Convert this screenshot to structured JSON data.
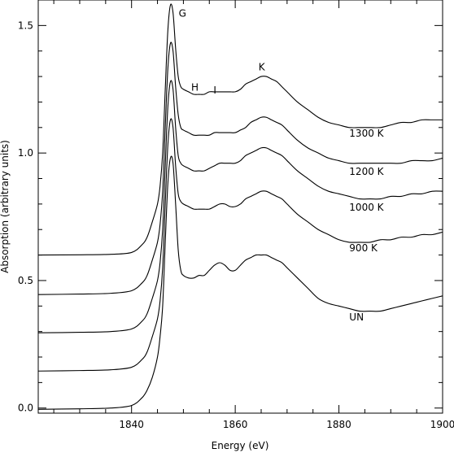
{
  "chart_data": {
    "type": "line",
    "xlabel": "Energy (eV)",
    "ylabel": "Absorption (arbitrary units)",
    "xlim": [
      1822,
      1900
    ],
    "ylim": [
      -0.02,
      1.6
    ],
    "x_ticks": [
      1840,
      1860,
      1880,
      1900
    ],
    "x_tick_labels": [
      "1840",
      "1860",
      "1880",
      "1900"
    ],
    "y_ticks": [
      0.0,
      0.5,
      1.0,
      1.5
    ],
    "y_tick_labels": [
      "0.0",
      "0.5",
      "1.0",
      "1.5"
    ],
    "grid": false,
    "legend": "none",
    "line_color": "#000000",
    "series": [
      {
        "name": "UN",
        "x": [
          1822,
          1830,
          1836,
          1840,
          1842,
          1843,
          1844,
          1845,
          1845.5,
          1846,
          1846.5,
          1847,
          1847.5,
          1848,
          1848.5,
          1849,
          1849.5,
          1850,
          1851,
          1852,
          1853,
          1854,
          1855,
          1856,
          1857,
          1858,
          1859,
          1860,
          1861,
          1862,
          1863,
          1864,
          1865,
          1866,
          1867,
          1868,
          1869,
          1870,
          1872,
          1874,
          1876,
          1878,
          1880,
          1882,
          1884,
          1886,
          1888,
          1890,
          1892,
          1894,
          1896,
          1898,
          1900
        ],
        "y": [
          -0.005,
          -0.003,
          0.0,
          0.01,
          0.04,
          0.07,
          0.12,
          0.2,
          0.28,
          0.4,
          0.65,
          0.88,
          0.98,
          0.96,
          0.8,
          0.62,
          0.54,
          0.52,
          0.51,
          0.51,
          0.52,
          0.52,
          0.54,
          0.56,
          0.57,
          0.56,
          0.54,
          0.54,
          0.56,
          0.58,
          0.59,
          0.6,
          0.6,
          0.6,
          0.59,
          0.58,
          0.57,
          0.55,
          0.51,
          0.47,
          0.43,
          0.41,
          0.4,
          0.39,
          0.38,
          0.38,
          0.38,
          0.39,
          0.4,
          0.41,
          0.42,
          0.43,
          0.44
        ]
      },
      {
        "name": "900 K",
        "x": [
          1822,
          1830,
          1836,
          1840,
          1842,
          1843,
          1844,
          1845,
          1845.5,
          1846,
          1846.5,
          1847,
          1847.5,
          1848,
          1848.5,
          1849,
          1849.5,
          1850,
          1851,
          1852,
          1853,
          1854,
          1855,
          1856,
          1857,
          1858,
          1859,
          1860,
          1861,
          1862,
          1863,
          1864,
          1865,
          1866,
          1867,
          1868,
          1869,
          1870,
          1872,
          1874,
          1876,
          1878,
          1880,
          1882,
          1884,
          1886,
          1888,
          1890,
          1892,
          1894,
          1896,
          1898,
          1900
        ],
        "y": [
          0.145,
          0.147,
          0.15,
          0.16,
          0.19,
          0.22,
          0.28,
          0.35,
          0.42,
          0.55,
          0.8,
          1.03,
          1.13,
          1.1,
          0.95,
          0.84,
          0.81,
          0.8,
          0.79,
          0.78,
          0.78,
          0.78,
          0.78,
          0.79,
          0.8,
          0.8,
          0.79,
          0.79,
          0.8,
          0.82,
          0.83,
          0.84,
          0.85,
          0.85,
          0.84,
          0.83,
          0.82,
          0.8,
          0.76,
          0.73,
          0.7,
          0.68,
          0.66,
          0.65,
          0.65,
          0.65,
          0.66,
          0.66,
          0.67,
          0.67,
          0.68,
          0.68,
          0.69
        ]
      },
      {
        "name": "1000 K",
        "x": [
          1822,
          1830,
          1836,
          1840,
          1842,
          1843,
          1844,
          1845,
          1845.5,
          1846,
          1846.5,
          1847,
          1847.5,
          1848,
          1848.5,
          1849,
          1849.5,
          1850,
          1851,
          1852,
          1853,
          1854,
          1855,
          1856,
          1857,
          1858,
          1859,
          1860,
          1861,
          1862,
          1863,
          1864,
          1865,
          1866,
          1867,
          1868,
          1869,
          1870,
          1872,
          1874,
          1876,
          1878,
          1880,
          1882,
          1884,
          1886,
          1888,
          1890,
          1892,
          1894,
          1896,
          1898,
          1900
        ],
        "y": [
          0.295,
          0.297,
          0.3,
          0.31,
          0.34,
          0.37,
          0.43,
          0.5,
          0.57,
          0.7,
          0.95,
          1.18,
          1.28,
          1.25,
          1.1,
          0.99,
          0.96,
          0.95,
          0.94,
          0.93,
          0.93,
          0.93,
          0.94,
          0.95,
          0.96,
          0.96,
          0.96,
          0.96,
          0.97,
          0.99,
          1.0,
          1.01,
          1.02,
          1.02,
          1.01,
          1.0,
          0.99,
          0.97,
          0.93,
          0.9,
          0.87,
          0.85,
          0.84,
          0.83,
          0.82,
          0.82,
          0.82,
          0.83,
          0.83,
          0.84,
          0.84,
          0.85,
          0.85
        ]
      },
      {
        "name": "1200 K",
        "x": [
          1822,
          1830,
          1836,
          1840,
          1842,
          1843,
          1844,
          1845,
          1845.5,
          1846,
          1846.5,
          1847,
          1847.5,
          1848,
          1848.5,
          1849,
          1849.5,
          1850,
          1851,
          1852,
          1853,
          1854,
          1855,
          1856,
          1857,
          1858,
          1859,
          1860,
          1861,
          1862,
          1863,
          1864,
          1865,
          1866,
          1867,
          1868,
          1869,
          1870,
          1872,
          1874,
          1876,
          1878,
          1880,
          1882,
          1884,
          1886,
          1888,
          1890,
          1892,
          1894,
          1896,
          1898,
          1900
        ],
        "y": [
          0.445,
          0.447,
          0.45,
          0.46,
          0.49,
          0.52,
          0.58,
          0.65,
          0.72,
          0.85,
          1.1,
          1.33,
          1.43,
          1.4,
          1.26,
          1.15,
          1.1,
          1.09,
          1.08,
          1.07,
          1.07,
          1.07,
          1.07,
          1.08,
          1.08,
          1.08,
          1.08,
          1.08,
          1.09,
          1.1,
          1.12,
          1.13,
          1.14,
          1.14,
          1.13,
          1.12,
          1.11,
          1.09,
          1.05,
          1.02,
          1.0,
          0.98,
          0.97,
          0.96,
          0.96,
          0.96,
          0.96,
          0.96,
          0.96,
          0.97,
          0.97,
          0.97,
          0.98
        ]
      },
      {
        "name": "1300 K",
        "x": [
          1822,
          1830,
          1836,
          1840,
          1842,
          1843,
          1844,
          1845,
          1845.5,
          1846,
          1846.5,
          1847,
          1847.5,
          1848,
          1848.5,
          1849,
          1849.5,
          1850,
          1851,
          1852,
          1853,
          1854,
          1855,
          1856,
          1857,
          1858,
          1859,
          1860,
          1861,
          1862,
          1863,
          1864,
          1865,
          1866,
          1867,
          1868,
          1869,
          1870,
          1872,
          1874,
          1876,
          1878,
          1880,
          1882,
          1884,
          1886,
          1888,
          1890,
          1892,
          1894,
          1896,
          1898,
          1900
        ],
        "y": [
          0.6,
          0.601,
          0.603,
          0.61,
          0.64,
          0.67,
          0.73,
          0.8,
          0.87,
          1.0,
          1.25,
          1.48,
          1.58,
          1.55,
          1.41,
          1.3,
          1.26,
          1.25,
          1.24,
          1.23,
          1.23,
          1.23,
          1.24,
          1.24,
          1.24,
          1.24,
          1.24,
          1.24,
          1.25,
          1.27,
          1.28,
          1.29,
          1.3,
          1.3,
          1.29,
          1.28,
          1.26,
          1.24,
          1.2,
          1.17,
          1.14,
          1.12,
          1.11,
          1.1,
          1.1,
          1.1,
          1.1,
          1.11,
          1.12,
          1.12,
          1.13,
          1.13,
          1.13
        ]
      }
    ],
    "series_labels": [
      {
        "text": "UN",
        "x": 1882,
        "y": 0.36
      },
      {
        "text": "900 K",
        "x": 1882,
        "y": 0.63
      },
      {
        "text": "1000 K",
        "x": 1882,
        "y": 0.79
      },
      {
        "text": "1200 K",
        "x": 1882,
        "y": 0.93
      },
      {
        "text": "1300 K",
        "x": 1882,
        "y": 1.08
      }
    ],
    "peak_labels": [
      {
        "text": "G",
        "x": 1849.1,
        "y": 1.55
      },
      {
        "text": "H",
        "x": 1851.5,
        "y": 1.26
      },
      {
        "text": "I",
        "x": 1855.8,
        "y": 1.25
      },
      {
        "text": "K",
        "x": 1864.5,
        "y": 1.34
      }
    ]
  }
}
